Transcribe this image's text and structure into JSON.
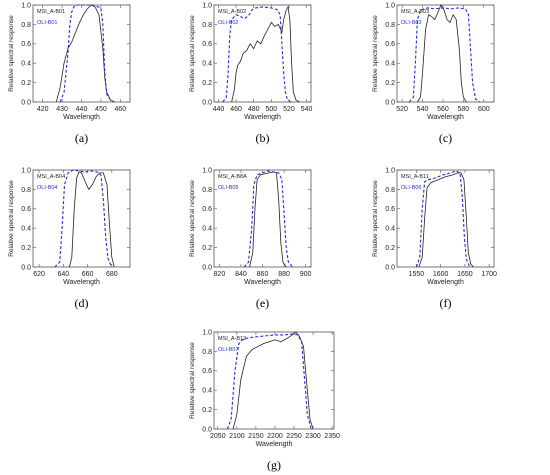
{
  "colors": {
    "msi": "#222222",
    "oli": "#2233cc"
  },
  "chart_data": [
    {
      "type": "line",
      "caption": "(a)",
      "xlabel": "Wavelength",
      "ylabel": "Relative spectral response",
      "xlim": [
        415,
        465
      ],
      "ylim": [
        0,
        1.0
      ],
      "xticks": [
        420,
        430,
        440,
        450,
        460
      ],
      "yticks": [
        0.0,
        0.2,
        0.4,
        0.6,
        0.8,
        1.0
      ],
      "legend": [
        "MSI_A-B01",
        "OLI-B01"
      ],
      "series": [
        {
          "name": "MSI_A-B01",
          "color": "msi",
          "dash": false,
          "x": [
            427,
            429,
            431,
            433,
            435,
            437,
            439,
            441,
            443,
            445,
            447,
            449,
            451,
            452,
            453,
            455,
            457
          ],
          "y": [
            0.0,
            0.15,
            0.4,
            0.55,
            0.62,
            0.72,
            0.82,
            0.9,
            0.96,
            1.0,
            0.98,
            0.9,
            0.55,
            0.25,
            0.1,
            0.02,
            0.0
          ]
        },
        {
          "name": "OLI-B01",
          "color": "oli",
          "dash": true,
          "x": [
            429,
            431,
            433,
            434,
            435,
            436,
            438,
            441,
            444,
            447,
            450,
            451,
            452,
            453,
            455,
            457
          ],
          "y": [
            0.0,
            0.1,
            0.5,
            0.8,
            0.93,
            0.98,
            1.0,
            1.0,
            1.0,
            0.99,
            0.97,
            0.8,
            0.3,
            0.08,
            0.02,
            0.0
          ]
        }
      ]
    },
    {
      "type": "line",
      "caption": "(b)",
      "xlabel": "Wavelength",
      "ylabel": "Relative spectral response",
      "xlim": [
        435,
        545
      ],
      "ylim": [
        0,
        1.0
      ],
      "xticks": [
        440,
        460,
        480,
        500,
        520,
        540
      ],
      "yticks": [
        0.0,
        0.2,
        0.4,
        0.6,
        0.8,
        1.0
      ],
      "legend": [
        "MSI_A-B02",
        "OLI-B02"
      ],
      "series": [
        {
          "name": "MSI_A-B02",
          "color": "msi",
          "dash": false,
          "x": [
            455,
            458,
            460,
            462,
            465,
            468,
            472,
            476,
            480,
            484,
            488,
            492,
            496,
            500,
            504,
            508,
            512,
            514,
            517,
            519,
            521,
            523,
            525,
            528,
            532
          ],
          "y": [
            0.0,
            0.12,
            0.3,
            0.38,
            0.42,
            0.5,
            0.53,
            0.6,
            0.55,
            0.63,
            0.6,
            0.68,
            0.75,
            0.82,
            0.78,
            0.8,
            0.72,
            0.85,
            0.95,
            0.98,
            0.85,
            0.4,
            0.1,
            0.02,
            0.0
          ]
        },
        {
          "name": "OLI-B02",
          "color": "oli",
          "dash": true,
          "x": [
            445,
            449,
            451,
            453,
            455,
            460,
            465,
            470,
            475,
            478,
            482,
            490,
            500,
            507,
            510,
            512,
            514,
            516,
            518,
            522
          ],
          "y": [
            0.0,
            0.05,
            0.3,
            0.7,
            0.85,
            0.9,
            0.88,
            0.86,
            0.9,
            0.95,
            0.97,
            0.98,
            0.97,
            0.95,
            0.9,
            0.6,
            0.3,
            0.1,
            0.03,
            0.0
          ]
        }
      ]
    },
    {
      "type": "line",
      "caption": "(c)",
      "xlabel": "Wavelength",
      "ylabel": "Relative spectral response",
      "xlim": [
        515,
        610
      ],
      "ylim": [
        0,
        1.0
      ],
      "xticks": [
        520,
        540,
        560,
        580,
        600
      ],
      "yticks": [
        0.0,
        0.2,
        0.4,
        0.6,
        0.8,
        1.0
      ],
      "legend": [
        "MSI_A-B03",
        "OLI-B03"
      ],
      "series": [
        {
          "name": "MSI_A-B03",
          "color": "msi",
          "dash": false,
          "x": [
            535,
            538,
            540,
            543,
            546,
            549,
            552,
            555,
            558,
            561,
            564,
            567,
            570,
            573,
            576,
            578,
            580,
            583
          ],
          "y": [
            0.0,
            0.05,
            0.3,
            0.75,
            0.9,
            0.88,
            0.85,
            0.92,
            1.0,
            0.95,
            0.85,
            0.82,
            0.9,
            0.85,
            0.55,
            0.2,
            0.05,
            0.0
          ]
        },
        {
          "name": "OLI-B03",
          "color": "oli",
          "dash": true,
          "x": [
            527,
            531,
            533,
            535,
            538,
            545,
            552,
            560,
            568,
            575,
            582,
            585,
            587,
            589,
            592,
            596
          ],
          "y": [
            0.0,
            0.05,
            0.4,
            0.85,
            0.95,
            0.97,
            0.96,
            0.97,
            0.96,
            0.97,
            0.96,
            0.9,
            0.55,
            0.2,
            0.03,
            0.0
          ]
        }
      ]
    },
    {
      "type": "line",
      "caption": "(d)",
      "xlabel": "Wavelength",
      "ylabel": "Relative spectral response",
      "xlim": [
        615,
        695
      ],
      "ylim": [
        0,
        1.0
      ],
      "xticks": [
        620,
        640,
        660,
        680
      ],
      "yticks": [
        0.0,
        0.2,
        0.4,
        0.6,
        0.8,
        1.0
      ],
      "legend": [
        "MSI_A-B04",
        "OLI-B04"
      ],
      "series": [
        {
          "name": "MSI_A-B04",
          "color": "msi",
          "dash": false,
          "x": [
            645,
            647,
            649,
            651,
            653,
            655,
            658,
            661,
            664,
            667,
            670,
            673,
            676,
            678,
            680,
            682
          ],
          "y": [
            0.0,
            0.1,
            0.6,
            0.92,
            0.98,
            0.97,
            0.88,
            0.8,
            0.85,
            0.93,
            0.97,
            0.97,
            0.85,
            0.45,
            0.1,
            0.0
          ]
        },
        {
          "name": "OLI-B04",
          "color": "oli",
          "dash": true,
          "x": [
            633,
            637,
            639,
            641,
            644,
            648,
            653,
            658,
            663,
            668,
            671,
            673,
            675,
            677,
            680
          ],
          "y": [
            0.0,
            0.05,
            0.4,
            0.85,
            0.97,
            1.0,
            0.99,
            0.98,
            0.99,
            0.98,
            0.95,
            0.7,
            0.3,
            0.08,
            0.0
          ]
        }
      ]
    },
    {
      "type": "line",
      "caption": "(e)",
      "xlabel": "Wavelength",
      "ylabel": "Relative spectral response",
      "xlim": [
        815,
        905
      ],
      "ylim": [
        0,
        1.0
      ],
      "xticks": [
        820,
        840,
        860,
        880,
        900
      ],
      "yticks": [
        0.0,
        0.2,
        0.4,
        0.6,
        0.8,
        1.0
      ],
      "legend": [
        "MSI_A-B8A",
        "OLI-B05"
      ],
      "series": [
        {
          "name": "MSI_A-B8A",
          "color": "msi",
          "dash": false,
          "x": [
            848,
            851,
            853,
            855,
            858,
            862,
            866,
            870,
            873,
            875,
            877,
            879,
            882
          ],
          "y": [
            0.0,
            0.15,
            0.6,
            0.9,
            0.95,
            0.96,
            0.97,
            0.98,
            0.97,
            0.7,
            0.25,
            0.05,
            0.0
          ]
        },
        {
          "name": "OLI-B05",
          "color": "oli",
          "dash": true,
          "x": [
            843,
            847,
            850,
            852,
            855,
            860,
            865,
            870,
            875,
            878,
            880,
            882,
            884,
            888
          ],
          "y": [
            0.0,
            0.05,
            0.4,
            0.85,
            0.95,
            0.97,
            0.99,
            0.98,
            0.97,
            0.9,
            0.55,
            0.2,
            0.05,
            0.0
          ]
        }
      ]
    },
    {
      "type": "line",
      "caption": "(f)",
      "xlabel": "Wavelength",
      "ylabel": "Relative spectral response",
      "xlim": [
        1510,
        1710
      ],
      "ylim": [
        0,
        1.0
      ],
      "xticks": [
        1550,
        1600,
        1650,
        1700
      ],
      "yticks": [
        0.0,
        0.2,
        0.4,
        0.6,
        0.8,
        1.0
      ],
      "legend": [
        "MSI_A-B11",
        "OLI-B06"
      ],
      "series": [
        {
          "name": "MSI_A-B11",
          "color": "msi",
          "dash": false,
          "x": [
            1555,
            1562,
            1567,
            1572,
            1580,
            1595,
            1610,
            1625,
            1635,
            1642,
            1648,
            1653,
            1657,
            1662,
            1668
          ],
          "y": [
            0.0,
            0.1,
            0.5,
            0.82,
            0.87,
            0.9,
            0.93,
            0.95,
            0.97,
            0.97,
            0.9,
            0.5,
            0.15,
            0.03,
            0.0
          ]
        },
        {
          "name": "OLI-B06",
          "color": "oli",
          "dash": true,
          "x": [
            1550,
            1557,
            1562,
            1567,
            1575,
            1590,
            1605,
            1620,
            1632,
            1640,
            1645,
            1649,
            1653,
            1660
          ],
          "y": [
            0.0,
            0.1,
            0.6,
            0.88,
            0.9,
            0.92,
            0.95,
            0.97,
            0.99,
            0.97,
            0.7,
            0.3,
            0.08,
            0.0
          ]
        }
      ]
    },
    {
      "type": "line",
      "caption": "(g)",
      "xlabel": "Wavelength",
      "ylabel": "Relative spectral response",
      "xlim": [
        2040,
        2355
      ],
      "ylim": [
        0,
        1.0
      ],
      "xticks": [
        2050,
        2100,
        2150,
        2200,
        2250,
        2300,
        2350
      ],
      "yticks": [
        0.0,
        0.2,
        0.4,
        0.6,
        0.8,
        1.0
      ],
      "legend": [
        "MSI_A-B12",
        "OLI-B07"
      ],
      "series": [
        {
          "name": "MSI_A-B12",
          "color": "msi",
          "dash": false,
          "x": [
            2090,
            2100,
            2110,
            2125,
            2140,
            2155,
            2170,
            2185,
            2200,
            2215,
            2230,
            2245,
            2255,
            2265,
            2275,
            2285,
            2292,
            2300
          ],
          "y": [
            0.0,
            0.15,
            0.5,
            0.75,
            0.82,
            0.85,
            0.88,
            0.9,
            0.92,
            0.9,
            0.93,
            0.97,
            1.0,
            0.95,
            0.85,
            0.4,
            0.1,
            0.0
          ]
        },
        {
          "name": "OLI-B07",
          "color": "oli",
          "dash": true,
          "x": [
            2075,
            2085,
            2095,
            2105,
            2115,
            2130,
            2150,
            2175,
            2200,
            2225,
            2245,
            2260,
            2270,
            2278,
            2285,
            2295
          ],
          "y": [
            0.0,
            0.1,
            0.6,
            0.88,
            0.92,
            0.94,
            0.95,
            0.96,
            0.97,
            0.97,
            0.98,
            0.97,
            0.9,
            0.5,
            0.15,
            0.0
          ]
        }
      ]
    }
  ]
}
